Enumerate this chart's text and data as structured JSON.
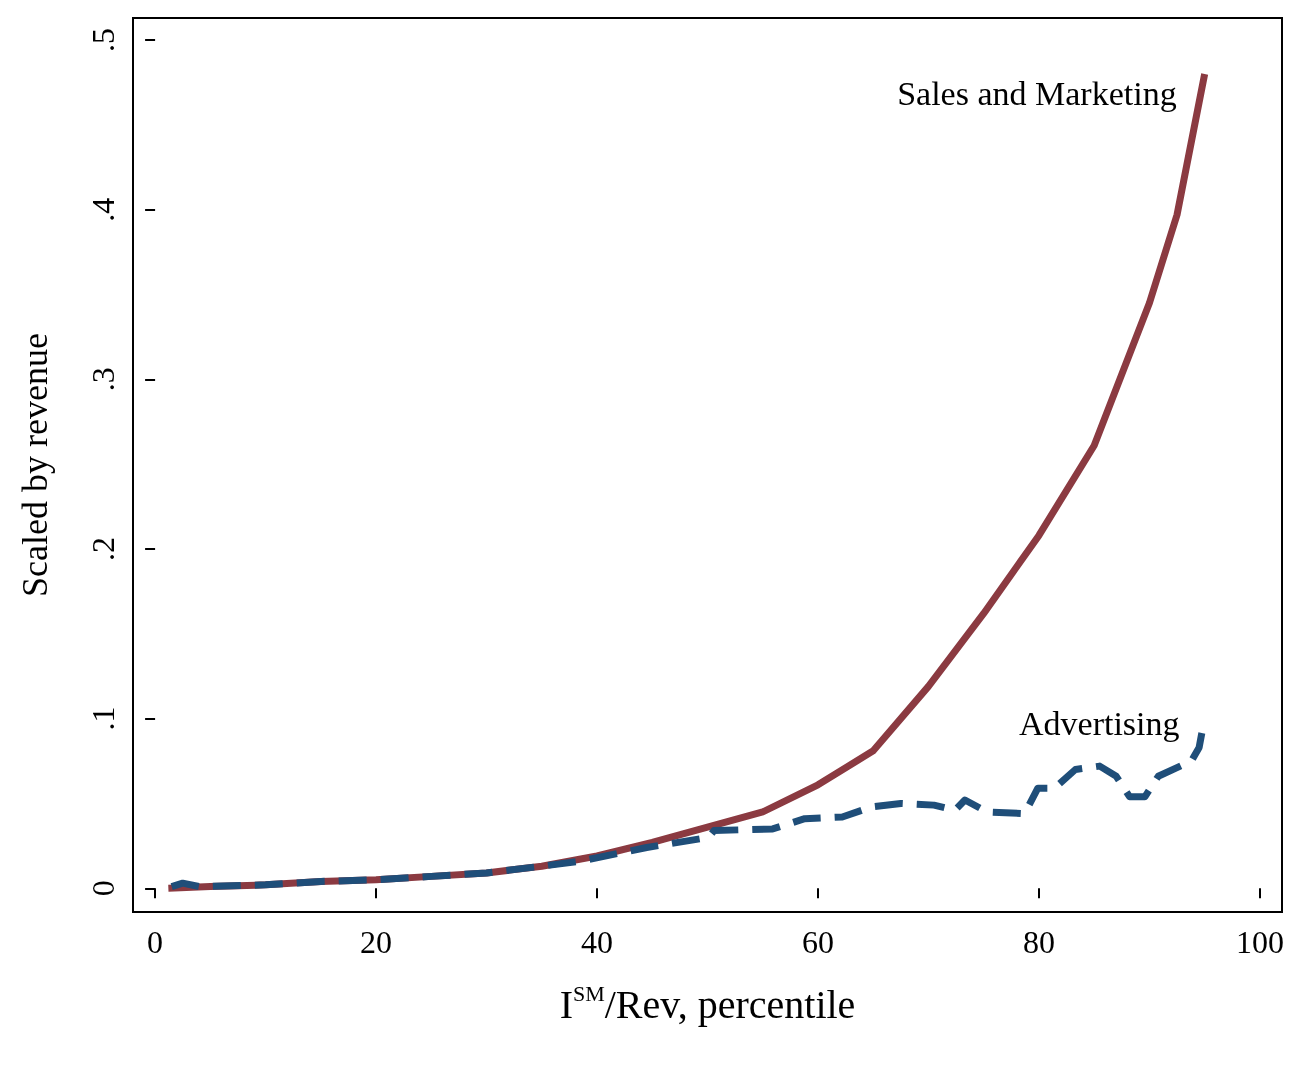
{
  "chart_data": {
    "type": "line",
    "xlabel": "I$^{SM}$/Rev, percentile",
    "ylabel": "Scaled by revenue",
    "xlim": [
      -2,
      102
    ],
    "xticks": [
      0,
      20,
      40,
      60,
      80,
      100
    ],
    "ylim": [
      -0.014,
      0.513
    ],
    "yticks": [
      0,
      {
        "value": 0.1,
        "label": ".1"
      },
      {
        "value": 0.2,
        "label": ".2"
      },
      {
        "value": 0.3,
        "label": ".3"
      },
      {
        "value": 0.4,
        "label": ".4"
      },
      {
        "value": 0.5,
        "label": ".5"
      }
    ],
    "grid": false,
    "legend": false,
    "series": [
      {
        "name": "Sales and Marketing",
        "color": "#8b3a41",
        "line_style": "solid",
        "x": [
          1.2,
          5,
          10,
          15,
          20,
          25,
          30,
          35,
          40,
          45,
          50,
          55,
          60,
          65,
          70,
          75,
          80,
          85,
          90,
          92.5,
          95
        ],
        "values": [
          0,
          0.001,
          0.002,
          0.004,
          0.005,
          0.007,
          0.009,
          0.013,
          0.019,
          0.027,
          0.036,
          0.045,
          0.061,
          0.081,
          0.119,
          0.162,
          0.208,
          0.261,
          0.345,
          0.397,
          0.48
        ]
      },
      {
        "name": "Advertising",
        "color": "#1f4e79",
        "line_style": "dashed",
        "x": [
          1.5,
          2.5,
          4,
          10,
          15,
          20,
          25,
          30,
          35,
          38.5,
          44.5,
          50.1,
          50.6,
          55.9,
          58.8,
          62.2,
          64.9,
          67.5,
          70.5,
          72.4,
          73.3,
          75.3,
          78.7,
          79.9,
          81.4,
          83.3,
          85.5,
          87,
          88.2,
          89.6,
          90.8,
          93.8,
          94.5,
          94.9
        ],
        "values": [
          0.001,
          0.003,
          0.001,
          0.002,
          0.004,
          0.005,
          0.007,
          0.009,
          0.013,
          0.016,
          0.024,
          0.03,
          0.034,
          0.035,
          0.041,
          0.042,
          0.048,
          0.05,
          0.049,
          0.046,
          0.052,
          0.045,
          0.044,
          0.059,
          0.059,
          0.07,
          0.072,
          0.066,
          0.054,
          0.054,
          0.066,
          0.075,
          0.083,
          0.097
        ]
      }
    ]
  }
}
